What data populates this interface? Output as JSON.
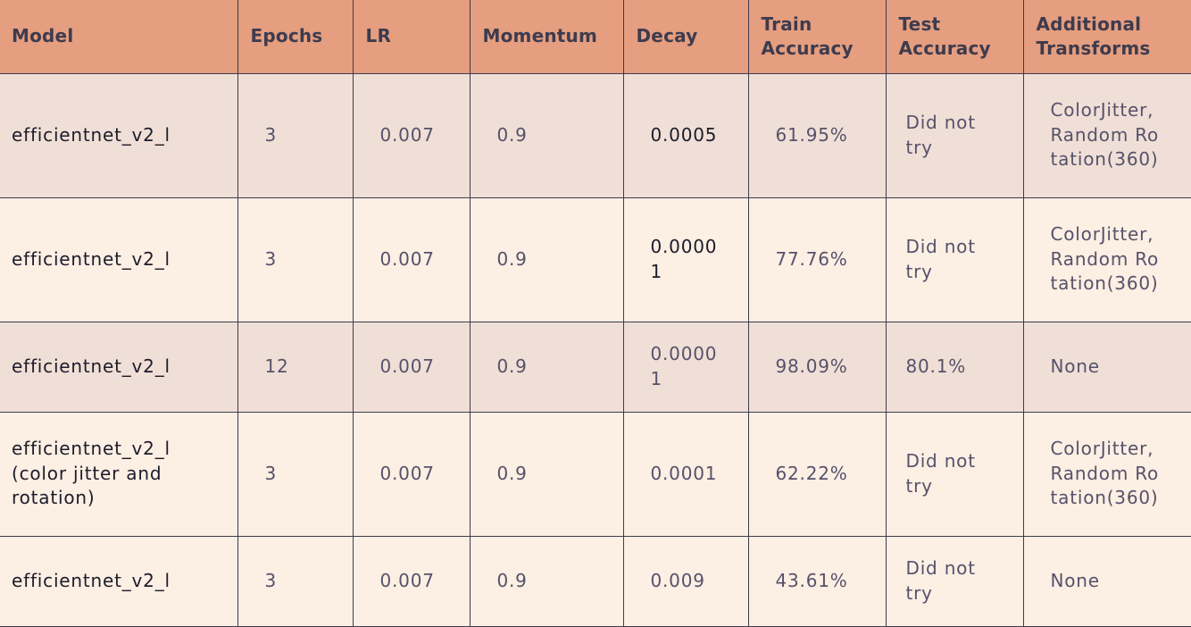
{
  "table": {
    "headers": [
      "Model",
      "Epochs",
      "LR",
      "Momentum",
      "Decay",
      "Train Accuracy",
      "Test Accuracy",
      "Additional Transforms"
    ],
    "rows": [
      [
        "efficientnet_v2_l",
        "3",
        "0.007",
        "0.9",
        "0.0005",
        "61.95%",
        "Did not try",
        "ColorJitter, Random Rotation(360)"
      ],
      [
        "efficientnet_v2_l",
        "3",
        "0.007",
        "0.9",
        "0.00001",
        "77.76%",
        "Did not try",
        "ColorJitter, Random Rotation(360)"
      ],
      [
        "efficientnet_v2_l",
        "12",
        "0.007",
        "0.9",
        "0.00001",
        "98.09%",
        "80.1%",
        "None"
      ],
      [
        "efficientnet_v2_l (color jitter and rotation)",
        "3",
        "0.007",
        "0.9",
        "0.0001",
        "62.22%",
        "Did not try",
        "ColorJitter, Random Rotation(360)"
      ],
      [
        "efficientnet_v2_l",
        "3",
        "0.007",
        "0.9",
        "0.009",
        "43.61%",
        "Did not try",
        "None"
      ]
    ]
  },
  "colors": {
    "header_bg": "#e59e7f",
    "row_alt_bg": "#f0dfd6",
    "row_bg": "#fcefe3",
    "grid_line": "#3e3b4e"
  }
}
